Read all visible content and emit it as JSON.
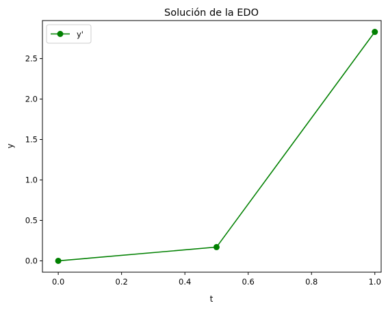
{
  "chart_data": {
    "type": "line",
    "title": "Solución de la EDO",
    "xlabel": "t",
    "ylabel": "y",
    "xlim": [
      -0.05,
      1.02
    ],
    "ylim": [
      -0.14,
      2.97
    ],
    "xticks": [
      "0.0",
      "0.2",
      "0.4",
      "0.6",
      "0.8",
      "1.0"
    ],
    "yticks": [
      "0.0",
      "0.5",
      "1.0",
      "1.5",
      "2.0",
      "2.5"
    ],
    "grid": false,
    "legend_position": "top-left",
    "series": [
      {
        "name": "y'",
        "color": "#008000",
        "marker": "circle",
        "x": [
          0.0,
          0.5,
          1.0
        ],
        "y": [
          0.0,
          0.17,
          2.83
        ]
      }
    ]
  }
}
